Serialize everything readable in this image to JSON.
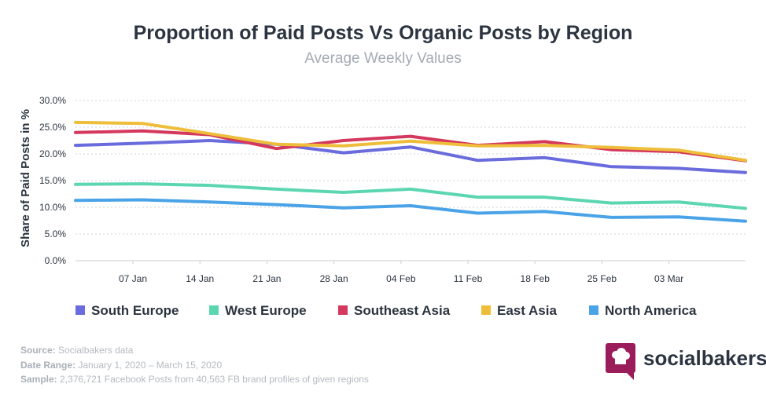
{
  "chart_data": {
    "type": "line",
    "title": "Proportion of Paid Posts Vs Organic Posts by Region",
    "subtitle": "Average Weekly Values",
    "ylabel": "Share of Paid Posts in %",
    "xlabel": "",
    "ylim": [
      0,
      30
    ],
    "yticks": [
      "0.0%",
      "5.0%",
      "10.0%",
      "15.0%",
      "20.0%",
      "25.0%",
      "30.0%"
    ],
    "xtick_labels": [
      "07 Jan",
      "14 Jan",
      "21 Jan",
      "28 Jan",
      "04 Feb",
      "11 Feb",
      "18 Feb",
      "25 Feb",
      "03 Mar"
    ],
    "x": [
      "2020-01-01",
      "2020-01-08",
      "2020-01-15",
      "2020-01-22",
      "2020-01-29",
      "2020-02-05",
      "2020-02-12",
      "2020-02-19",
      "2020-02-26",
      "2020-03-04",
      "2020-03-11"
    ],
    "grid": true,
    "legend_position": "bottom",
    "series": [
      {
        "name": "South Europe",
        "color": "#6a6bdc",
        "values": [
          21.6,
          22.0,
          22.5,
          21.8,
          20.2,
          21.3,
          18.8,
          19.3,
          17.6,
          17.3,
          16.5
        ]
      },
      {
        "name": "West Europe",
        "color": "#5cd6b0",
        "values": [
          14.3,
          14.4,
          14.1,
          13.4,
          12.8,
          13.4,
          11.9,
          11.9,
          10.8,
          11.0,
          9.8
        ]
      },
      {
        "name": "Southeast Asia",
        "color": "#d4385c",
        "values": [
          24.0,
          24.3,
          23.6,
          21.0,
          22.5,
          23.3,
          21.6,
          22.3,
          20.8,
          20.4,
          18.7
        ]
      },
      {
        "name": "East Asia",
        "color": "#eebd3a",
        "values": [
          25.9,
          25.7,
          23.8,
          21.8,
          21.5,
          22.4,
          21.5,
          21.6,
          21.2,
          20.7,
          18.8
        ]
      },
      {
        "name": "North America",
        "color": "#4aa3e6",
        "values": [
          11.3,
          11.4,
          11.0,
          10.5,
          9.9,
          10.3,
          8.9,
          9.2,
          8.1,
          8.2,
          7.4
        ]
      }
    ]
  },
  "footer": {
    "source_label": "Source:",
    "source_value": "Socialbakers data",
    "date_label": "Date Range:",
    "date_value": "January 1, 2020  – March 15, 2020",
    "sample_label": "Sample:",
    "sample_value": "2,376,721 Facebook Posts from 40,563 FB brand profiles of given regions"
  },
  "brand": {
    "name": "socialbakers",
    "color": "#9b1c5a"
  }
}
